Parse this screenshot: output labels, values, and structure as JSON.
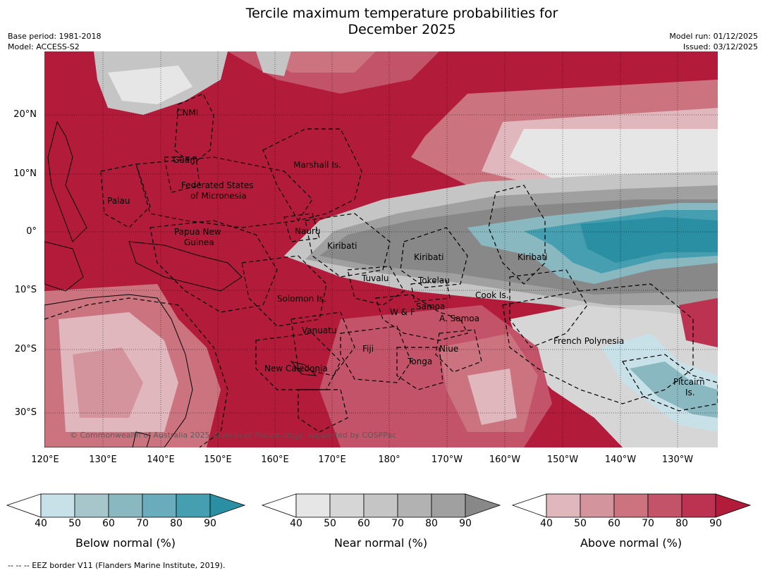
{
  "header": {
    "title_line1": "Tercile maximum temperature probabilities for",
    "title_line2": "December 2025",
    "base_period": "Base period: 1981-2018",
    "model": "Model: ACCESS-S2",
    "model_run": "Model run: 01/12/2025",
    "issued": "Issued: 03/12/2025"
  },
  "map": {
    "copyright": "© Commonwealth of Australia 2025, Bureau of Meteorology, supported by COSPPac",
    "lat_ticks": [
      "20°N",
      "10°N",
      "0°",
      "10°S",
      "20°S",
      "30°S"
    ],
    "lon_ticks": [
      "120°E",
      "130°E",
      "140°E",
      "150°E",
      "160°E",
      "170°E",
      "180°",
      "170°W",
      "160°W",
      "150°W",
      "140°W",
      "130°W"
    ],
    "labels": {
      "cnmi": "CNMI",
      "guam": "Guam",
      "marshall": "Marshall Is.",
      "palau": "Palau",
      "fsm1": "Federated States",
      "fsm2": "of Micronesia",
      "png1": "Papua New",
      "png2": "Guinea",
      "nauru": "Nauru",
      "kiribati_w": "Kiribati",
      "kiribati_c": "Kiribati",
      "kiribati_e": "Kiribati",
      "tuvalu": "Tuvalu",
      "tokelau": "Tokelau",
      "cook": "Cook Is.",
      "solomon": "Solomon Is.",
      "samoa": "Samoa",
      "wf": "W & F",
      "asamoa": "A. Samoa",
      "vanuatu": "Vanuatu",
      "fiji": "Fiji",
      "niue": "Niue",
      "tonga": "Tonga",
      "newcal": "New Caledonia",
      "frpoly": "French Polynesia",
      "pitcairn1": "Pitcairn",
      "pitcairn2": "Is."
    }
  },
  "colors": {
    "above": [
      "#ffffff",
      "#e0b7bd",
      "#d4949e",
      "#cb7480",
      "#c35368",
      "#bb3350",
      "#b31b3b"
    ],
    "near": [
      "#ffffff",
      "#e6e6e6",
      "#d6d6d6",
      "#c5c5c5",
      "#b2b2b2",
      "#a0a0a0",
      "#888888"
    ],
    "below": [
      "#ffffff",
      "#c8e1e8",
      "#a6c6cc",
      "#89b8c0",
      "#6aacbb",
      "#459fb0",
      "#2b8fa3"
    ]
  },
  "colorbars": [
    {
      "id": "below",
      "title": "Below normal (%)",
      "ticks": [
        "40",
        "50",
        "60",
        "70",
        "80",
        "90"
      ]
    },
    {
      "id": "near",
      "title": "Near normal (%)",
      "ticks": [
        "40",
        "50",
        "60",
        "70",
        "80",
        "90"
      ]
    },
    {
      "id": "above",
      "title": "Above normal (%)",
      "ticks": [
        "40",
        "50",
        "60",
        "70",
        "80",
        "90"
      ]
    }
  ],
  "footer": {
    "eez": "--  --  -- EEZ border V11 (Flanders Marine Institute, 2019)."
  }
}
